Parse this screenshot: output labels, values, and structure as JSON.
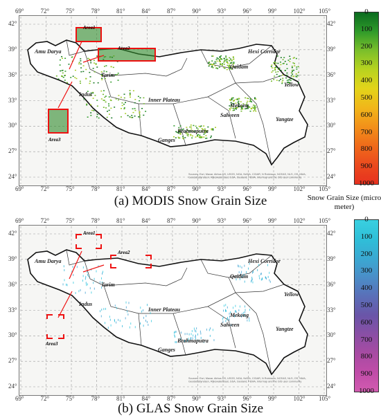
{
  "panels": [
    {
      "id": "modis",
      "caption": "(a) MODIS Snow Grain Size",
      "lon_ticks": [
        "69°",
        "72°",
        "75°",
        "78°",
        "81°",
        "84°",
        "87°",
        "90°",
        "93°",
        "96°",
        "99°",
        "102°",
        "105°"
      ],
      "lat_ticks": [
        "42°",
        "39°",
        "36°",
        "33°",
        "30°",
        "27°",
        "24°"
      ],
      "colorbar_ticks": [
        "0",
        "100",
        "200",
        "300",
        "400",
        "500",
        "600",
        "700",
        "800",
        "900",
        "1000"
      ],
      "colorbar_colors": [
        "#0a6b1f",
        "#2f9a2a",
        "#7bbf2b",
        "#b8d31f",
        "#e3d41a",
        "#f1b61a",
        "#f2901a",
        "#f06a1a",
        "#eb4a1e",
        "#e6311f"
      ],
      "areas": [
        "Area1",
        "Area2",
        "Area3"
      ],
      "regions": [
        "Amu Darya",
        "Hexi Corridor",
        "Qaidam",
        "Tarim",
        "Yellow",
        "Indus",
        "Inner Plateau",
        "Mekong",
        "Salween",
        "Yangtze",
        "Brahmaputra",
        "Ganges"
      ],
      "attribution": "Sources: Esri, Maxar, Airbus DS, USGS, NGA, NASA, CGIAR, N Robinson, NCEAS, NLS, OS, NMA, Geodatastyrelsen, Rijkswaterstaat, GSA, Geoland, FEMA, Intermap and the GIS user community"
    },
    {
      "id": "glas",
      "caption": "(b) GLAS Snow Grain Size",
      "lon_ticks": [
        "69°",
        "72°",
        "75°",
        "78°",
        "81°",
        "84°",
        "87°",
        "90°",
        "93°",
        "96°",
        "99°",
        "102°",
        "105°"
      ],
      "lat_ticks": [
        "42°",
        "39°",
        "36°",
        "33°",
        "30°",
        "27°",
        "24°"
      ],
      "colorbar_ticks": [
        "0",
        "100",
        "200",
        "300",
        "400",
        "500",
        "600",
        "700",
        "800",
        "900",
        "1000"
      ],
      "colorbar_colors": [
        "#39d0e0",
        "#2fbfd8",
        "#3aa9d2",
        "#4a8ec8",
        "#5a6fb8",
        "#6a55a8",
        "#8a4fa5",
        "#a84ba3",
        "#c04ca8",
        "#d25bb0"
      ],
      "areas": [
        "Area1",
        "Area2",
        "Area3"
      ],
      "regions": [
        "Amu Darya",
        "Hexi Corridor",
        "Qaidam",
        "Tarim",
        "Yellow",
        "Indus",
        "Inner Plateau",
        "Mekong",
        "Salween",
        "Yangtze",
        "Brahmaputra",
        "Ganges"
      ],
      "attribution": "Sources: Esri, Maxar, Airbus DS, USGS, NGA, NASA, CGIAR, N Robinson, NCEAS, NLS, OS, NMA, Geodatastyrelsen, Rijkswaterstaat, GSA, Geoland, FEMA, Intermap and the GIS user community"
    }
  ],
  "colorbar_title": "Snow Grain Size (micro meter)"
}
